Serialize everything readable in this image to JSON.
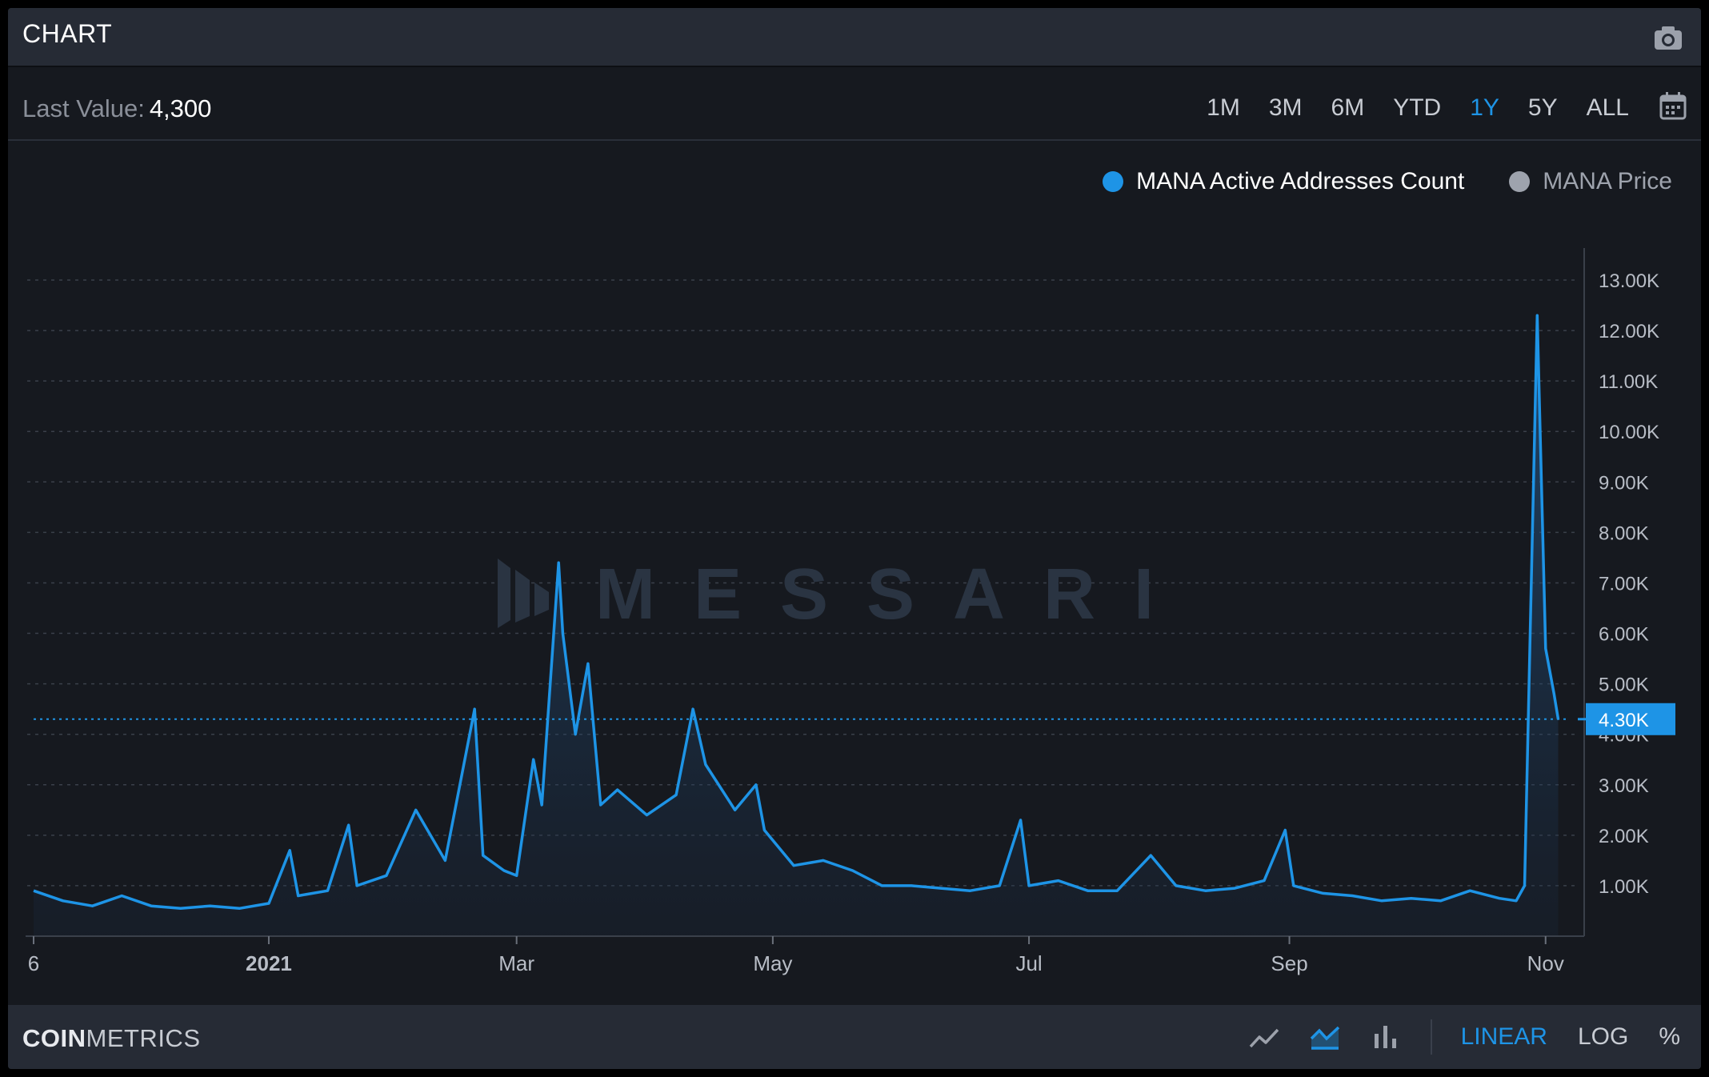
{
  "header": {
    "title": "CHART"
  },
  "range_bar": {
    "last_value_label": "Last Value:",
    "last_value": "4,300",
    "ranges": [
      "1M",
      "3M",
      "6M",
      "YTD",
      "1Y",
      "5Y",
      "ALL"
    ],
    "active_range": "1Y"
  },
  "legend": [
    {
      "label": "MANA Active Addresses Count",
      "color": "#1e94e6"
    },
    {
      "label": "MANA Price",
      "color": "#9ea3ad"
    }
  ],
  "watermark": "MESSARI",
  "footer": {
    "brand_bold": "COIN",
    "brand_light": "METRICS",
    "scale_options": [
      "LINEAR",
      "LOG",
      "%"
    ],
    "active_scale": "LINEAR"
  },
  "chart_data": {
    "type": "area",
    "series": [
      {
        "name": "MANA Active Addresses Count",
        "color": "#1e94e6",
        "x": [
          "2020-11-06",
          "2020-11-13",
          "2020-11-20",
          "2020-11-27",
          "2020-12-04",
          "2020-12-11",
          "2020-12-18",
          "2020-12-25",
          "2021-01-01",
          "2021-01-06",
          "2021-01-08",
          "2021-01-15",
          "2021-01-20",
          "2021-01-22",
          "2021-01-29",
          "2021-02-05",
          "2021-02-12",
          "2021-02-19",
          "2021-02-21",
          "2021-02-26",
          "2021-03-01",
          "2021-03-05",
          "2021-03-07",
          "2021-03-11",
          "2021-03-12",
          "2021-03-15",
          "2021-03-18",
          "2021-03-21",
          "2021-03-25",
          "2021-04-01",
          "2021-04-08",
          "2021-04-12",
          "2021-04-15",
          "2021-04-22",
          "2021-04-27",
          "2021-04-29",
          "2021-05-06",
          "2021-05-13",
          "2021-05-20",
          "2021-05-27",
          "2021-06-03",
          "2021-06-10",
          "2021-06-17",
          "2021-06-24",
          "2021-06-29",
          "2021-07-01",
          "2021-07-08",
          "2021-07-15",
          "2021-07-22",
          "2021-07-30",
          "2021-08-05",
          "2021-08-12",
          "2021-08-19",
          "2021-08-26",
          "2021-08-31",
          "2021-09-02",
          "2021-09-09",
          "2021-09-16",
          "2021-09-23",
          "2021-09-30",
          "2021-10-07",
          "2021-10-14",
          "2021-10-21",
          "2021-10-25",
          "2021-10-27",
          "2021-10-30",
          "2021-11-01",
          "2021-11-03",
          "2021-11-04"
        ],
        "y": [
          900,
          700,
          600,
          800,
          600,
          550,
          600,
          550,
          650,
          1700,
          800,
          900,
          2200,
          1000,
          1200,
          2500,
          1500,
          4500,
          1600,
          1300,
          1200,
          3500,
          2600,
          7400,
          6000,
          4000,
          5400,
          2600,
          2900,
          2400,
          2800,
          4500,
          3400,
          2500,
          3000,
          2100,
          1400,
          1500,
          1300,
          1000,
          1000,
          950,
          900,
          1000,
          2300,
          1000,
          1100,
          900,
          900,
          1600,
          1000,
          900,
          950,
          1100,
          2100,
          1000,
          850,
          800,
          700,
          750,
          700,
          900,
          750,
          700,
          1000,
          12300,
          5700,
          4800,
          4300
        ]
      },
      {
        "name": "MANA Price",
        "color": "#9ea3ad",
        "x": [],
        "y": []
      }
    ],
    "x_ticks": [
      "6",
      "2021",
      "Mar",
      "May",
      "Jul",
      "Sep",
      "Nov"
    ],
    "y_ticks": [
      "1.00K",
      "2.00K",
      "3.00K",
      "4.00K",
      "5.00K",
      "6.00K",
      "7.00K",
      "8.00K",
      "9.00K",
      "10.00K",
      "11.00K",
      "12.00K",
      "13.00K"
    ],
    "ylim": [
      0,
      13000
    ],
    "current_value_label": "4.30K",
    "current_value": 4300,
    "grid": true,
    "legend_position": "top-right",
    "y_axis_side": "right"
  }
}
